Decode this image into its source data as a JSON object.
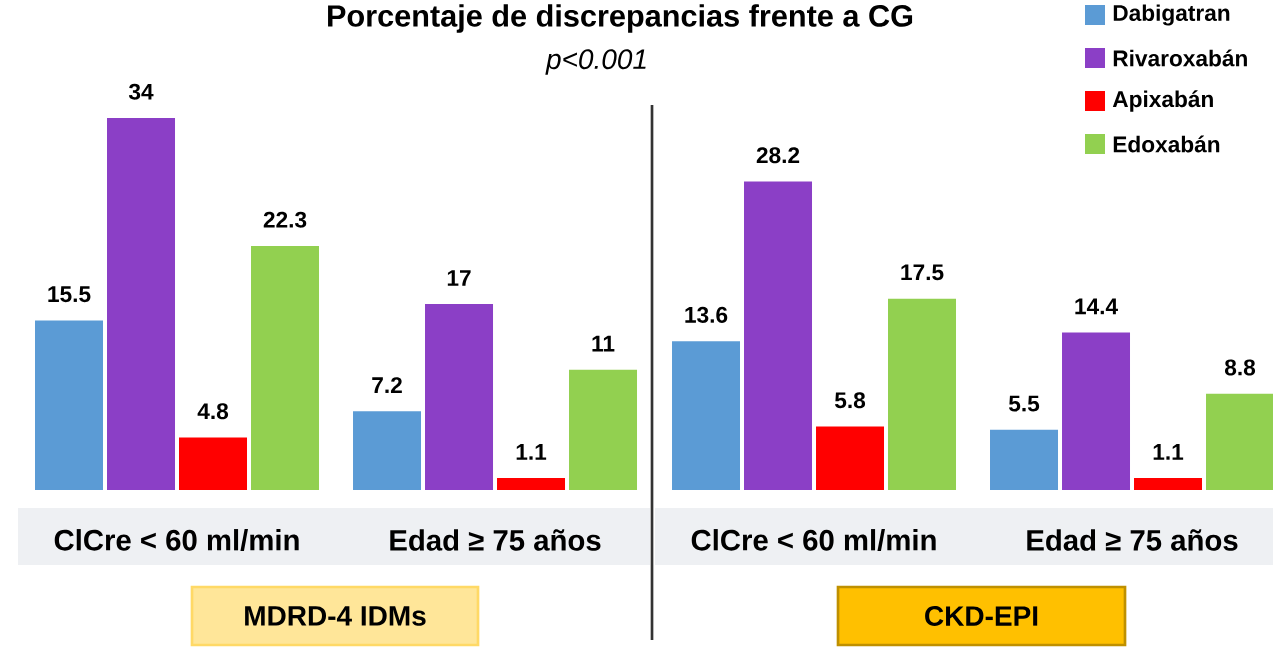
{
  "chart_data": [
    {
      "type": "bar",
      "title": "Porcentaje de discrepancias frente a CG",
      "subtitle": "p<0.001",
      "categories": [
        "ClCre < 60 ml/min",
        "Edad ≥ 75 años"
      ],
      "xlabel": "MDRD-4 IDMs",
      "data_labels": true,
      "series": [
        {
          "color": "#5b9bd5",
          "values": [
            15.5,
            7.2
          ]
        },
        {
          "color": "#8b3fc6",
          "values": [
            34,
            17
          ]
        },
        {
          "color": "#ff0000",
          "values": [
            4.8,
            1.1
          ]
        },
        {
          "color": "#92d050",
          "values": [
            22.3,
            11
          ]
        }
      ]
    },
    {
      "type": "bar",
      "categories": [
        "ClCre < 60 ml/min",
        "Edad ≥ 75 años"
      ],
      "xlabel": "CKD-EPI",
      "data_labels": true,
      "legend": "top right",
      "series": [
        {
          "name": "Dabigatran",
          "color": "#5b9bd5",
          "values": [
            13.6,
            5.5
          ]
        },
        {
          "name": "Rivaroxabán",
          "color": "#8b3fc6",
          "values": [
            28.2,
            14.4
          ]
        },
        {
          "name": "Apixabán",
          "color": "#ff0000",
          "values": [
            5.8,
            1.1
          ]
        },
        {
          "name": "Edoxabán",
          "color": "#92d050",
          "values": [
            17.5,
            8.8
          ]
        }
      ]
    }
  ]
}
